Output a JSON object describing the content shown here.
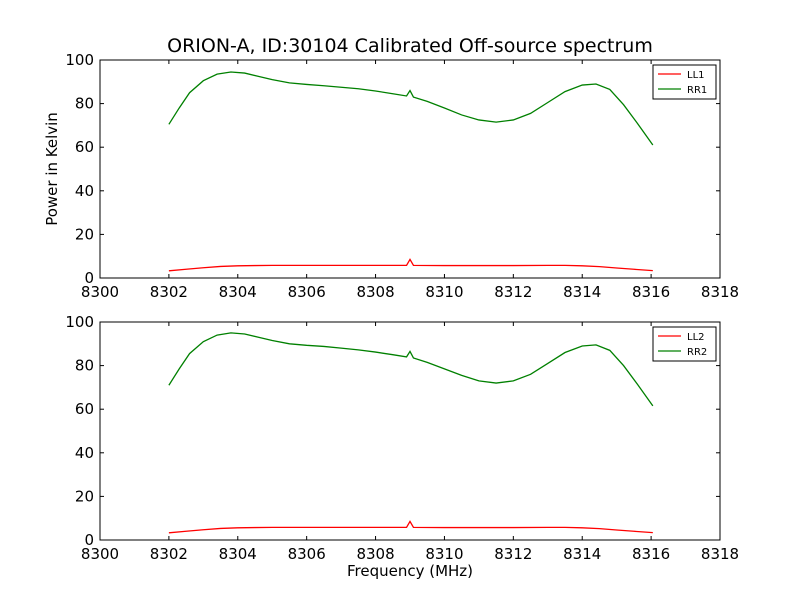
{
  "colors": {
    "ll": "#ff0000",
    "rr": "#008000",
    "axes": "#000000",
    "background": "#ffffff"
  },
  "chart_data": [
    {
      "type": "line",
      "title": "ORION-A, ID:30104 Calibrated Off-source spectrum",
      "xlabel": "",
      "ylabel": "Power in Kelvin",
      "xlim": [
        8300,
        8318
      ],
      "ylim": [
        0,
        100
      ],
      "xticks": [
        "8300",
        "8302",
        "8304",
        "8306",
        "8308",
        "8310",
        "8312",
        "8314",
        "8316",
        "8318"
      ],
      "yticks": [
        "0",
        "20",
        "40",
        "60",
        "80",
        "100"
      ],
      "legend_position": "top-right",
      "series": [
        {
          "name": "LL1",
          "color": "#ff0000",
          "x": [
            8302.0,
            8302.5,
            8303.0,
            8303.5,
            8304.0,
            8304.5,
            8305.0,
            8306.0,
            8307.0,
            8308.0,
            8308.9,
            8309.0,
            8309.1,
            8310.0,
            8311.0,
            8312.0,
            8313.0,
            8313.5,
            8314.0,
            8314.5,
            8315.0,
            8315.5,
            8316.05
          ],
          "y": [
            3.3,
            4.0,
            4.7,
            5.3,
            5.6,
            5.7,
            5.8,
            5.8,
            5.8,
            5.8,
            5.8,
            8.5,
            5.8,
            5.7,
            5.7,
            5.7,
            5.8,
            5.8,
            5.6,
            5.2,
            4.6,
            4.0,
            3.4
          ]
        },
        {
          "name": "RR1",
          "color": "#008000",
          "x": [
            8302.0,
            8302.3,
            8302.6,
            8303.0,
            8303.4,
            8303.8,
            8304.2,
            8304.6,
            8305.0,
            8305.5,
            8306.0,
            8306.5,
            8307.0,
            8307.5,
            8308.0,
            8308.5,
            8308.9,
            8309.0,
            8309.1,
            8309.5,
            8310.0,
            8310.5,
            8311.0,
            8311.5,
            8312.0,
            8312.5,
            8313.0,
            8313.5,
            8314.0,
            8314.4,
            8314.8,
            8315.2,
            8315.6,
            8316.05
          ],
          "y": [
            70.5,
            78.0,
            85.0,
            90.5,
            93.5,
            94.5,
            94.0,
            92.5,
            91.0,
            89.5,
            88.8,
            88.2,
            87.5,
            86.8,
            85.8,
            84.5,
            83.5,
            86.0,
            83.0,
            81.0,
            78.0,
            74.8,
            72.5,
            71.5,
            72.5,
            75.5,
            80.5,
            85.5,
            88.5,
            89.0,
            86.5,
            79.5,
            71.0,
            61.0
          ]
        }
      ]
    },
    {
      "type": "line",
      "title": "",
      "xlabel": "Frequency (MHz)",
      "ylabel": "",
      "xlim": [
        8300,
        8318
      ],
      "ylim": [
        0,
        100
      ],
      "xticks": [
        "8300",
        "8302",
        "8304",
        "8306",
        "8308",
        "8310",
        "8312",
        "8314",
        "8316",
        "8318"
      ],
      "yticks": [
        "0",
        "20",
        "40",
        "60",
        "80",
        "100"
      ],
      "legend_position": "top-right",
      "series": [
        {
          "name": "LL2",
          "color": "#ff0000",
          "x": [
            8302.0,
            8302.5,
            8303.0,
            8303.5,
            8304.0,
            8304.5,
            8305.0,
            8306.0,
            8307.0,
            8308.0,
            8308.9,
            8309.0,
            8309.1,
            8310.0,
            8311.0,
            8312.0,
            8313.0,
            8313.5,
            8314.0,
            8314.5,
            8315.0,
            8315.5,
            8316.05
          ],
          "y": [
            3.3,
            4.0,
            4.7,
            5.3,
            5.6,
            5.7,
            5.8,
            5.8,
            5.8,
            5.8,
            5.8,
            8.5,
            5.8,
            5.7,
            5.7,
            5.7,
            5.8,
            5.8,
            5.6,
            5.2,
            4.6,
            4.0,
            3.4
          ]
        },
        {
          "name": "RR2",
          "color": "#008000",
          "x": [
            8302.0,
            8302.3,
            8302.6,
            8303.0,
            8303.4,
            8303.8,
            8304.2,
            8304.6,
            8305.0,
            8305.5,
            8306.0,
            8306.5,
            8307.0,
            8307.5,
            8308.0,
            8308.5,
            8308.9,
            8309.0,
            8309.1,
            8309.5,
            8310.0,
            8310.5,
            8311.0,
            8311.5,
            8312.0,
            8312.5,
            8313.0,
            8313.5,
            8314.0,
            8314.4,
            8314.8,
            8315.2,
            8315.6,
            8316.05
          ],
          "y": [
            71.0,
            78.5,
            85.5,
            91.0,
            94.0,
            95.0,
            94.5,
            93.0,
            91.5,
            90.0,
            89.3,
            88.8,
            88.0,
            87.2,
            86.2,
            85.0,
            84.0,
            86.5,
            83.5,
            81.5,
            78.5,
            75.5,
            73.0,
            72.0,
            73.0,
            76.0,
            81.0,
            86.0,
            89.0,
            89.5,
            87.0,
            80.0,
            71.5,
            61.5
          ]
        }
      ]
    }
  ]
}
